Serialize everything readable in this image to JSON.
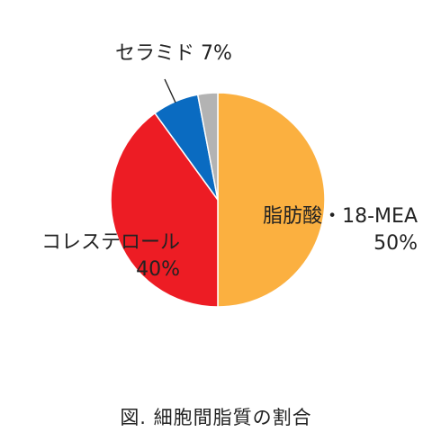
{
  "chart_data": {
    "type": "pie",
    "slices": [
      {
        "label": "脂肪酸・18-MEA",
        "value": 50,
        "value_label": "50%",
        "color": "#FBB040"
      },
      {
        "label": "コレステロール",
        "value": 40,
        "value_label": "40%",
        "color": "#ED1C24"
      },
      {
        "label": "セラミド",
        "value": 7,
        "value_label": "7%",
        "color": "#0A6BC1"
      },
      {
        "label": "",
        "value": 3,
        "value_label": "",
        "color": "#B3B3B3"
      }
    ],
    "labels": {
      "fatty": {
        "name": "脂肪酸・18-MEA",
        "value": "50%"
      },
      "chol": {
        "name": "コレステロール",
        "value": "40%"
      },
      "cer": {
        "text": "セラミド 7%"
      }
    }
  },
  "caption": "図.  細胞間脂質の割合"
}
